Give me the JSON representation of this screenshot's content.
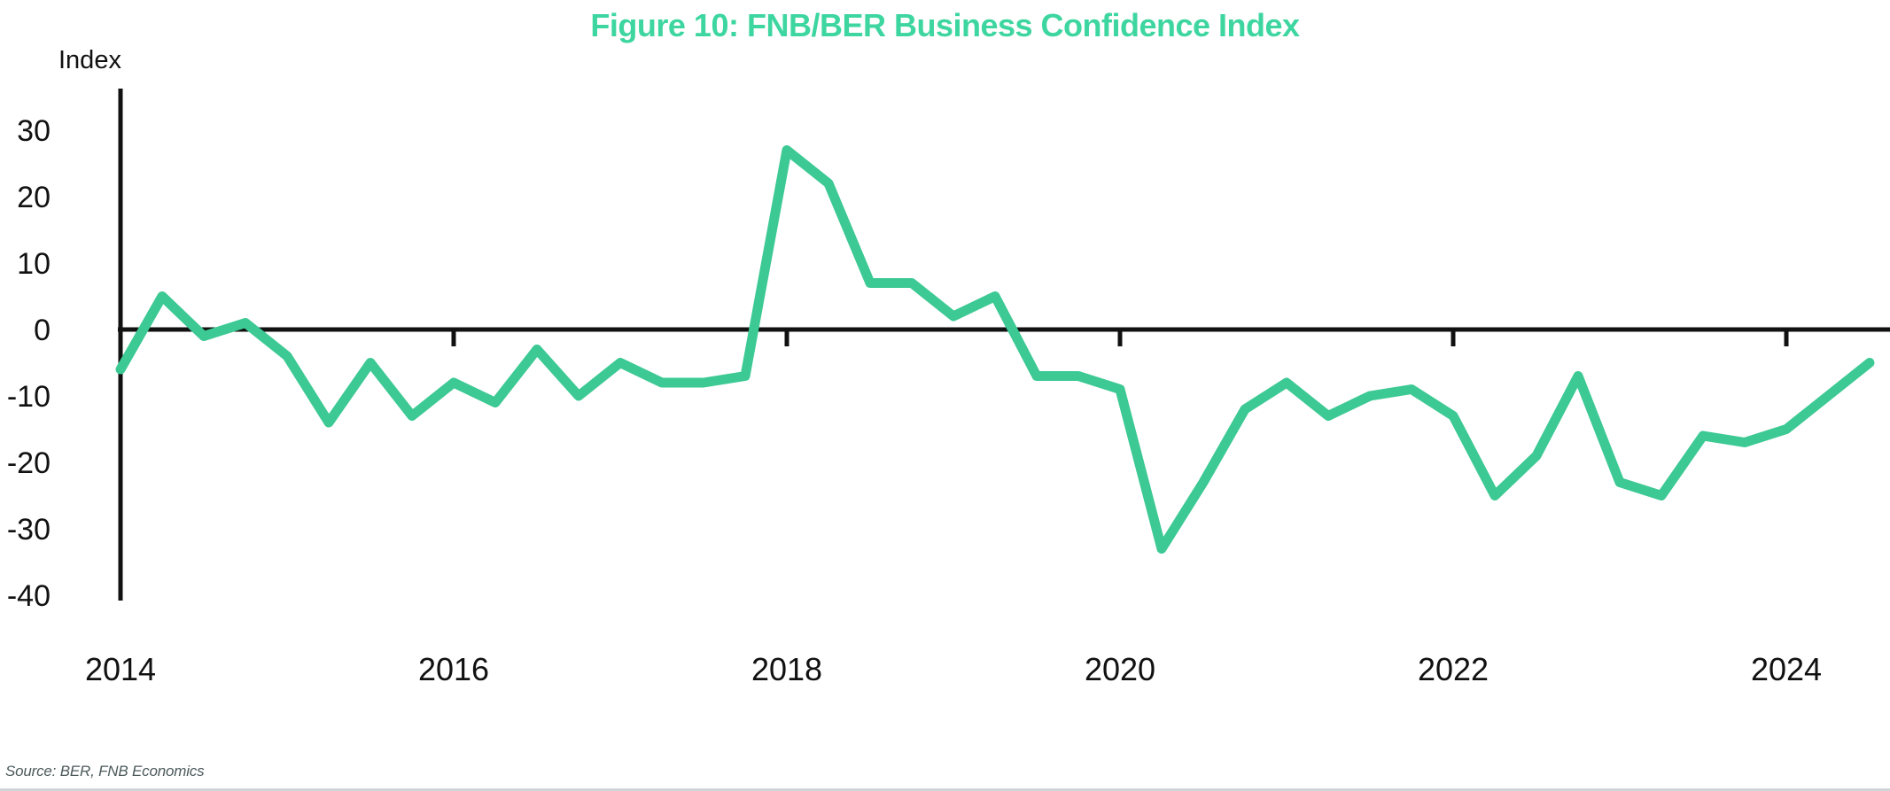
{
  "title": "Figure 10: FNB/BER Business Confidence Index",
  "y_axis_label": "Index",
  "source_note": "Source: BER, FNB Economics",
  "colors": {
    "title": "#3ED6A0",
    "line": "#3CC994",
    "axis": "#111111",
    "source_text": "#4D5A5C",
    "bottom_rule": "#D2D5D7"
  },
  "chart_data": {
    "type": "line",
    "title": "Figure 10: FNB/BER Business Confidence Index",
    "xlabel": "",
    "ylabel": "Index",
    "frequency": "quarterly",
    "grid": false,
    "legend": "none",
    "ylim": [
      -40,
      36
    ],
    "y_ticks": [
      30,
      20,
      10,
      0,
      -10,
      -20,
      -30,
      -40
    ],
    "x_ticks": [
      2014,
      2016,
      2018,
      2020,
      2022,
      2024
    ],
    "x_tick_labels": [
      "2014",
      "2016",
      "2018",
      "2020",
      "2022",
      "2024"
    ],
    "x": [
      "2014 Q1",
      "2014 Q2",
      "2014 Q3",
      "2014 Q4",
      "2015 Q1",
      "2015 Q2",
      "2015 Q3",
      "2015 Q4",
      "2016 Q1",
      "2016 Q2",
      "2016 Q3",
      "2016 Q4",
      "2017 Q1",
      "2017 Q2",
      "2017 Q3",
      "2017 Q4",
      "2018 Q1",
      "2018 Q2",
      "2018 Q3",
      "2018 Q4",
      "2019 Q1",
      "2019 Q2",
      "2019 Q3",
      "2019 Q4",
      "2020 Q1",
      "2020 Q2",
      "2020 Q3",
      "2020 Q4",
      "2021 Q1",
      "2021 Q2",
      "2021 Q3",
      "2021 Q4",
      "2022 Q1",
      "2022 Q2",
      "2022 Q3",
      "2022 Q4",
      "2023 Q1",
      "2023 Q2",
      "2023 Q3",
      "2023 Q4",
      "2024 Q1",
      "2024 Q2",
      "2024 Q3"
    ],
    "series": [
      {
        "name": "FNB/BER Business Confidence Index",
        "values": [
          -6,
          5,
          -1,
          1,
          -4,
          -14,
          -5,
          -13,
          -8,
          -11,
          -3,
          -10,
          -5,
          -8,
          -8,
          -7,
          27,
          22,
          7,
          7,
          2,
          5,
          -7,
          -7,
          -9,
          -33,
          -23,
          -12,
          -8,
          -13,
          -10,
          -9,
          -13,
          -25,
          -19,
          -7,
          -23,
          -25,
          -16,
          -17,
          -15,
          -10,
          -5
        ]
      }
    ]
  }
}
